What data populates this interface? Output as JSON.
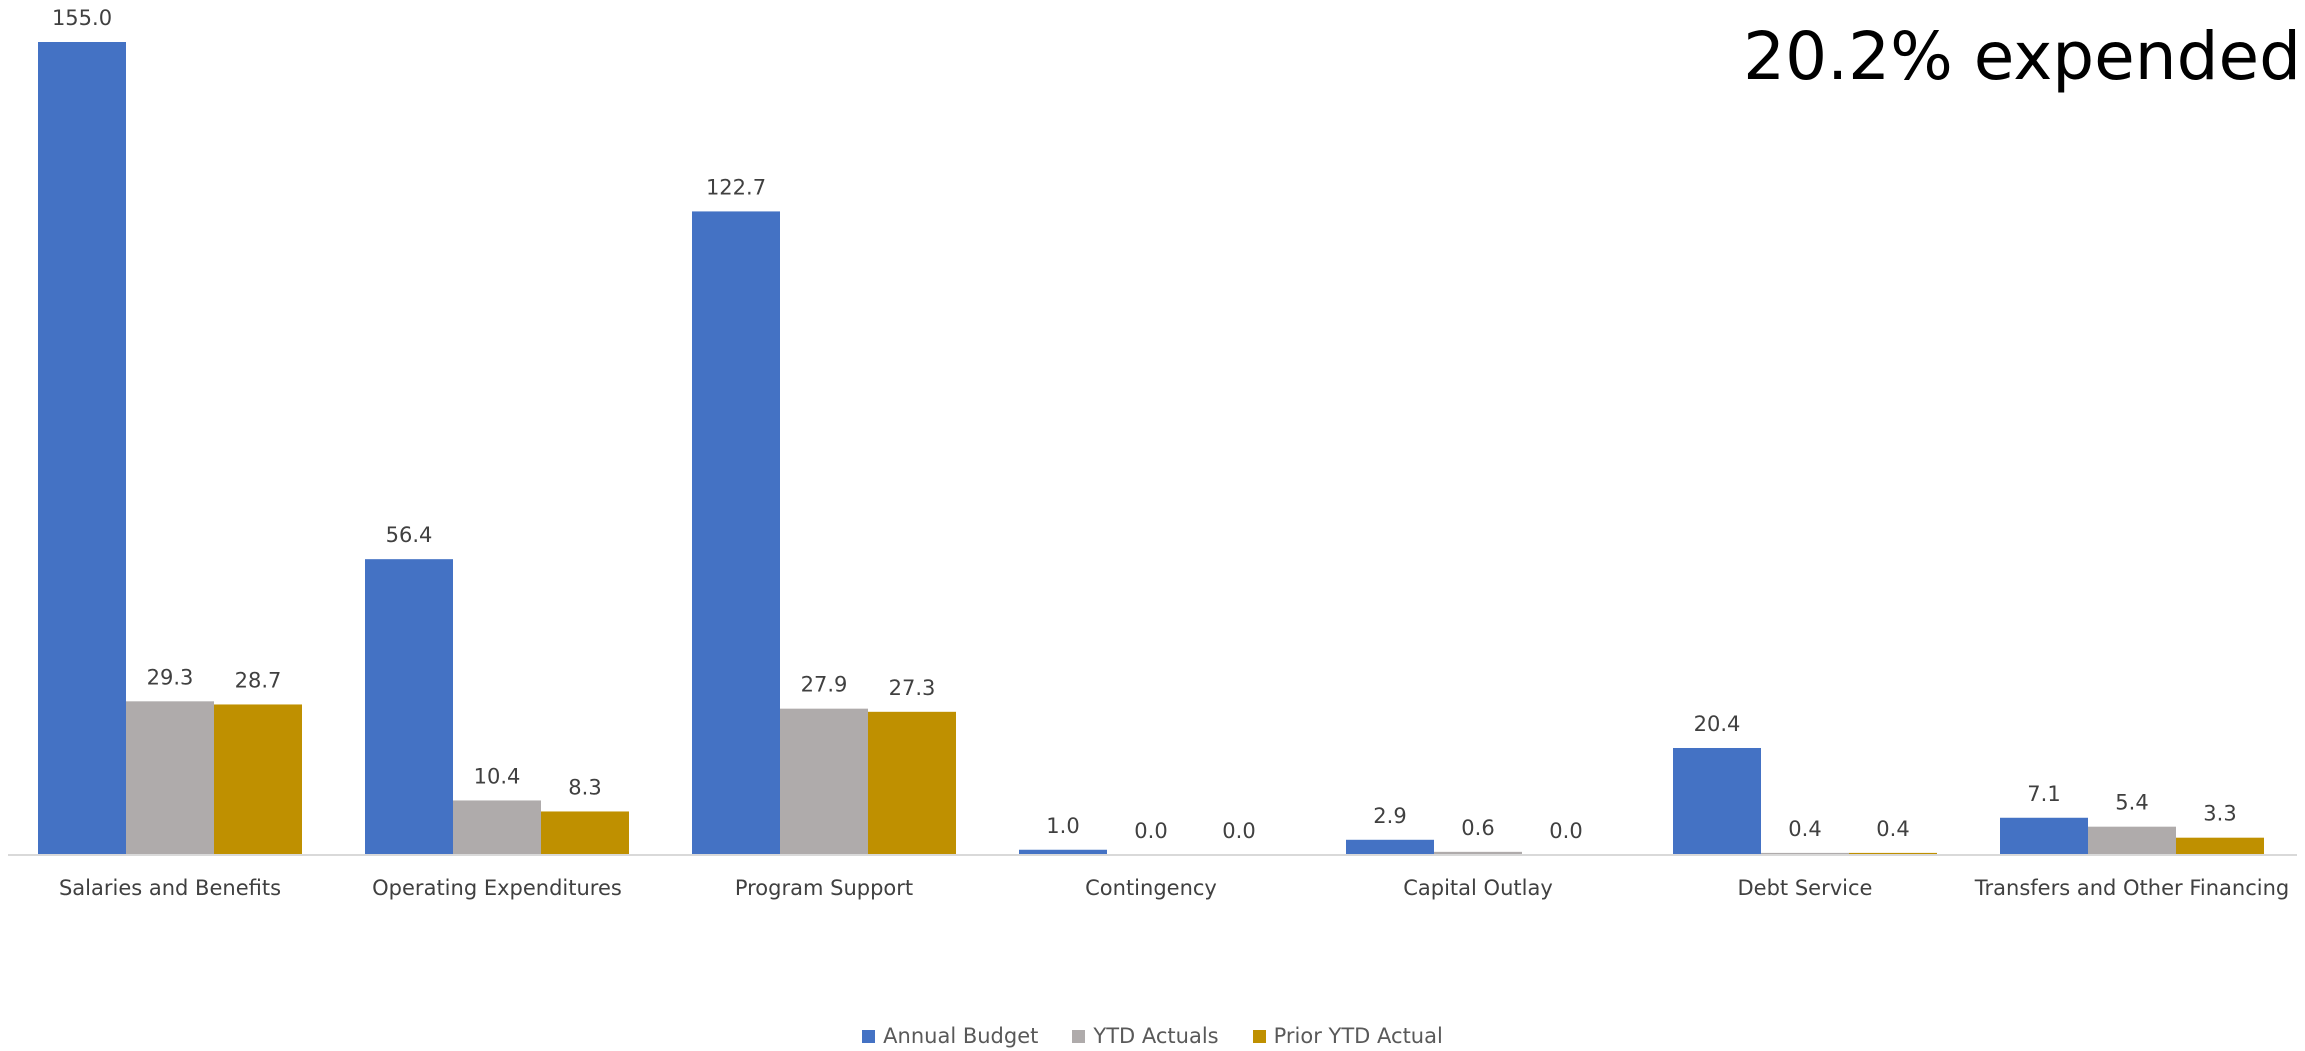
{
  "headline": "20.2% expended",
  "chart_data": {
    "type": "bar",
    "categories": [
      "Salaries and Benefits",
      "Operating Expenditures",
      "Program Support",
      "Contingency",
      "Capital Outlay",
      "Debt Service",
      "Transfers and Other Financing"
    ],
    "series": [
      {
        "name": "Annual Budget",
        "color": "#4472C4",
        "values": [
          155.0,
          56.4,
          122.7,
          1.0,
          2.9,
          20.4,
          7.1
        ],
        "labels": [
          "155.0",
          "56.4",
          "122.7",
          "1.0",
          "2.9",
          "20.4",
          "7.1"
        ]
      },
      {
        "name": "YTD Actuals",
        "color": "#AFABAB",
        "values": [
          29.3,
          10.4,
          27.9,
          0.0,
          0.6,
          0.4,
          5.4
        ],
        "labels": [
          "29.3",
          "10.4",
          "27.9",
          "0.0",
          "0.6",
          "0.4",
          "5.4"
        ]
      },
      {
        "name": "Prior YTD Actual",
        "color": "#BF9000",
        "values": [
          28.7,
          8.3,
          27.3,
          0.0,
          0.0,
          0.4,
          3.3
        ],
        "labels": [
          "28.7",
          "8.3",
          "27.3",
          "0.0",
          "0.0",
          "0.4",
          "3.3"
        ]
      }
    ],
    "ylim": [
      0,
      155.0
    ],
    "grid": false,
    "legend_position": "bottom"
  }
}
